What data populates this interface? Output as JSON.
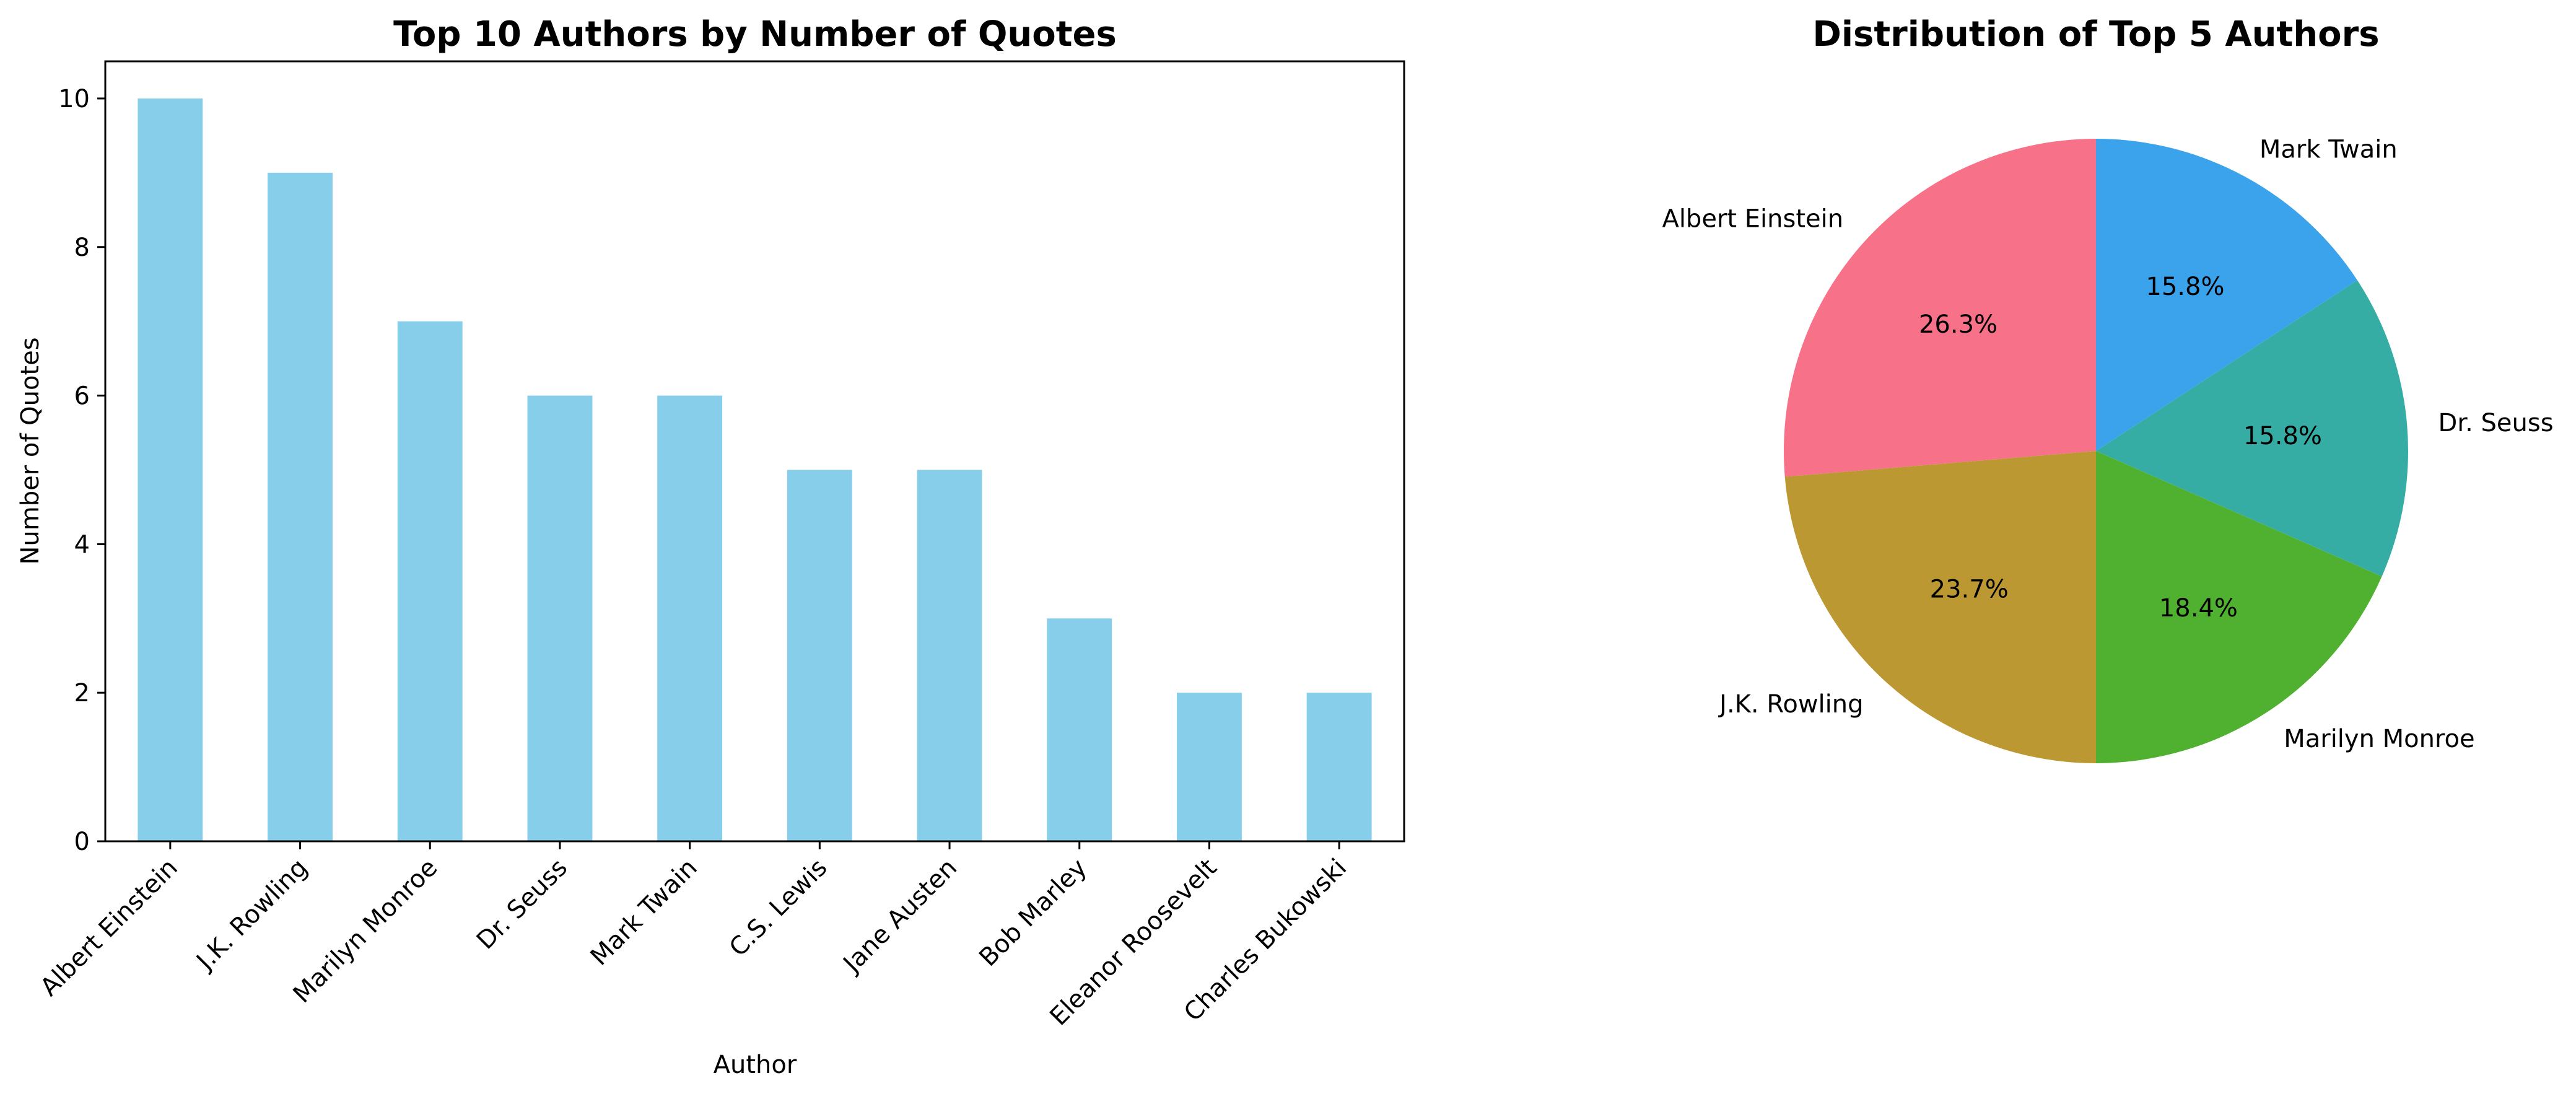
{
  "chart_data": [
    {
      "type": "bar",
      "title": "Top 10 Authors by Number of Quotes",
      "xlabel": "Author",
      "ylabel": "Number of Quotes",
      "categories": [
        "Albert Einstein",
        "J.K. Rowling",
        "Marilyn Monroe",
        "Dr. Seuss",
        "Mark Twain",
        "C.S. Lewis",
        "Jane Austen",
        "Bob Marley",
        "Eleanor Roosevelt",
        "Charles Bukowski"
      ],
      "values": [
        10,
        9,
        7,
        6,
        6,
        5,
        5,
        3,
        2,
        2
      ],
      "ylim": [
        0,
        10.5
      ],
      "yticks": [
        0,
        2,
        4,
        6,
        8,
        10
      ],
      "color": "#87CEEB",
      "grid": false
    },
    {
      "type": "pie",
      "title": "Distribution of Top 5 Authors",
      "labels": [
        "Albert Einstein",
        "J.K. Rowling",
        "Marilyn Monroe",
        "Dr. Seuss",
        "Mark Twain"
      ],
      "values": [
        10,
        9,
        7,
        6,
        6
      ],
      "percent_labels": [
        "26.3%",
        "23.7%",
        "18.4%",
        "15.8%",
        "15.8%"
      ],
      "colors": [
        "#F77189",
        "#BB9832",
        "#50B131",
        "#36ADA4",
        "#3BA3EC"
      ],
      "start_angle": 90,
      "direction": "counterclockwise"
    }
  ]
}
